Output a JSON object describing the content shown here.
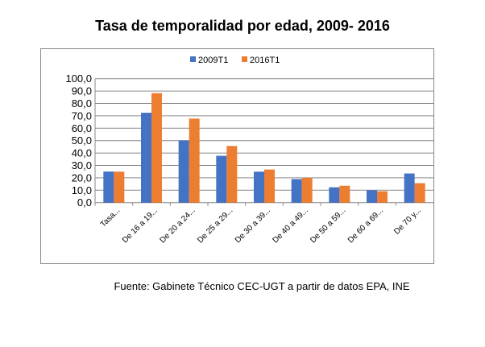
{
  "chart_data": {
    "type": "bar",
    "title": "Tasa de temporalidad por edad, 2009- 2016",
    "source": "Fuente: Gabinete Técnico CEC-UGT a partir de datos EPA, INE",
    "categories": [
      "Tasa...",
      "De 16 a 19...",
      "De 20 a 24...",
      "De 25 a 29...",
      "De 30 a 39...",
      "De 40 a 49...",
      "De 50 a 59...",
      "De 60 a 69...",
      "De 70 y..."
    ],
    "series": [
      {
        "name": "2009T1",
        "color": "#4472C4",
        "values": [
          25.1,
          72.5,
          50.2,
          37.8,
          25.0,
          19.0,
          12.4,
          10.0,
          23.5
        ]
      },
      {
        "name": "2016T1",
        "color": "#ED7D31",
        "values": [
          25.0,
          88.3,
          67.8,
          45.7,
          26.7,
          20.0,
          13.6,
          9.2,
          15.7
        ]
      }
    ],
    "ylim": [
      0,
      100
    ],
    "yticks": [
      "0,0",
      "10,0",
      "20,0",
      "30,0",
      "40,0",
      "50,0",
      "60,0",
      "70,0",
      "80,0",
      "90,0",
      "100,0"
    ],
    "grid": true,
    "legend": "top"
  }
}
